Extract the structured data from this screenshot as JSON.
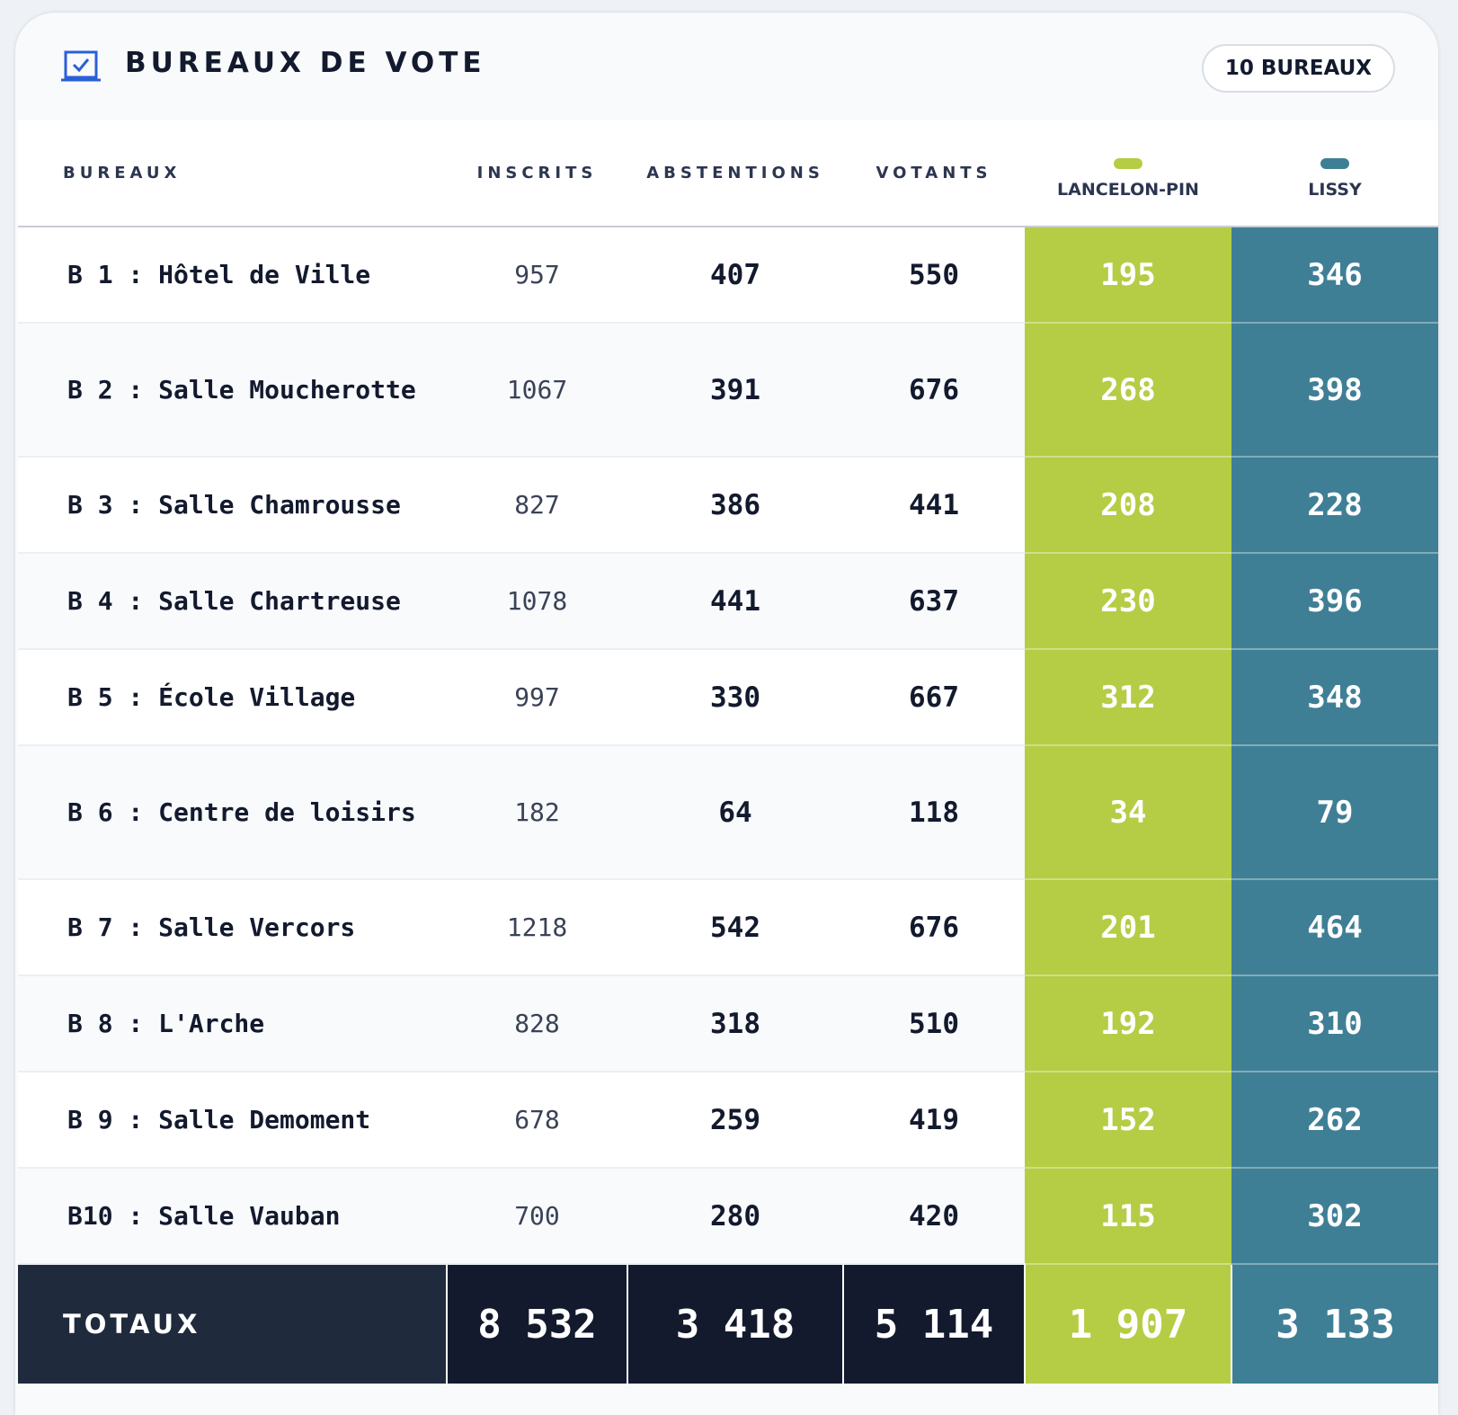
{
  "header": {
    "title": "BUREAUX DE VOTE",
    "badge": "10 BUREAUX"
  },
  "table": {
    "columns": [
      "BUREAUX",
      "INSCRITS",
      "ABSTENTIONS",
      "VOTANTS"
    ],
    "candidates": [
      {
        "name": "LANCELON-PIN",
        "color": "#b5cc45"
      },
      {
        "name": "LISSY",
        "color": "#3f7f96"
      }
    ],
    "rows": [
      [
        "B 1 : Hôtel de Ville",
        957,
        407,
        550,
        195,
        346
      ],
      [
        "B 2 : Salle Moucherotte",
        1067,
        391,
        676,
        268,
        398
      ],
      [
        "B 3 : Salle Chamrousse",
        827,
        386,
        441,
        208,
        228
      ],
      [
        "B 4 : Salle Chartreuse",
        1078,
        441,
        637,
        230,
        396
      ],
      [
        "B 5 : École Village",
        997,
        330,
        667,
        312,
        348
      ],
      [
        "B 6 : Centre de loisirs",
        182,
        64,
        118,
        34,
        79
      ],
      [
        "B 7 : Salle Vercors",
        1218,
        542,
        676,
        201,
        464
      ],
      [
        "B 8 : L'Arche",
        828,
        318,
        510,
        192,
        310
      ],
      [
        "B 9 : Salle Demoment",
        678,
        259,
        419,
        152,
        262
      ],
      [
        "B10 : Salle Vauban",
        700,
        280,
        420,
        115,
        302
      ]
    ],
    "totals": [
      "TOTAUX",
      "8 532",
      "3 418",
      "5 114",
      "1 907",
      "3 133"
    ]
  }
}
